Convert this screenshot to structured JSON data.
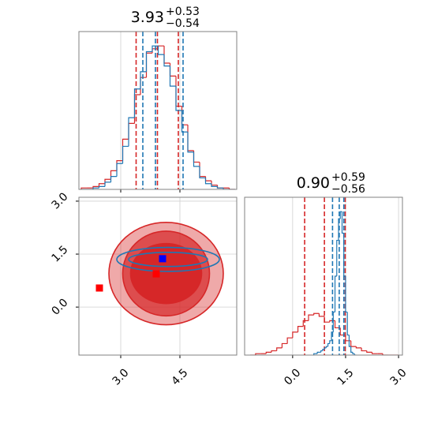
{
  "chart_data": [
    {
      "type": "histogram",
      "title": {
        "value": "3.93",
        "upper": "+0.53",
        "lower": "−0.54"
      },
      "xlim": [
        1.94,
        5.94
      ],
      "xticks": [
        3,
        4.5
      ],
      "ylim": [
        0,
        110
      ],
      "grid": true,
      "series": [
        {
          "color": "#d62728",
          "bins": [
            2.0,
            2.15,
            2.3,
            2.45,
            2.6,
            2.75,
            2.9,
            3.05,
            3.2,
            3.35,
            3.5,
            3.65,
            3.8,
            3.95,
            4.1,
            4.25,
            4.4,
            4.55,
            4.7,
            4.85,
            5.0,
            5.15,
            5.3,
            5.45,
            5.6,
            5.75,
            5.9
          ],
          "values": [
            1,
            1,
            2,
            4,
            7,
            13,
            20,
            35,
            46,
            66,
            78,
            95,
            98,
            100,
            88,
            79,
            58,
            45,
            27,
            19,
            9,
            6,
            3,
            1,
            1,
            0
          ],
          "quantiles": [
            3.39,
            3.93,
            4.46
          ]
        },
        {
          "color": "#1f77b4",
          "bins": [
            2.0,
            2.15,
            2.3,
            2.45,
            2.6,
            2.75,
            2.9,
            3.05,
            3.2,
            3.35,
            3.5,
            3.65,
            3.8,
            3.95,
            4.1,
            4.25,
            4.4,
            4.55,
            4.7,
            4.85,
            5.0,
            5.15,
            5.3,
            5.45,
            5.6,
            5.75,
            5.9
          ],
          "values": [
            0,
            0,
            1,
            2,
            5,
            9,
            18,
            30,
            50,
            70,
            82,
            96,
            100,
            94,
            86,
            72,
            55,
            40,
            26,
            16,
            8,
            4,
            2,
            1,
            0,
            0
          ],
          "quantiles": [
            3.56,
            3.88,
            4.58
          ]
        }
      ]
    },
    {
      "type": "contour",
      "xlim": [
        1.94,
        5.94
      ],
      "ylim": [
        -1.36,
        3.11
      ],
      "xticks": [
        {
          "value": 3,
          "label": "3.0"
        },
        {
          "value": 4.5,
          "label": "4.5"
        }
      ],
      "yticks": [
        {
          "value": 0,
          "label": "0.0"
        },
        {
          "value": 1.5,
          "label": "1.5"
        },
        {
          "value": 3,
          "label": "3.0"
        }
      ],
      "grid": true,
      "contours": [
        {
          "color": "#d62728",
          "center": [
            4.15,
            0.95
          ],
          "radii": [
            [
              1.45,
              1.45
            ],
            [
              1.1,
              1.2
            ],
            [
              0.9,
              0.85
            ]
          ]
        },
        {
          "color": "#1f77b4",
          "center": [
            4.2,
            1.35
          ],
          "radii": [
            [
              1.3,
              0.34
            ],
            [
              1.0,
              0.2
            ]
          ]
        }
      ],
      "points": [
        {
          "color": "#ff0000",
          "x": 2.46,
          "y": 0.54
        },
        {
          "color": "#ff0000",
          "x": 3.9,
          "y": 0.94
        },
        {
          "color": "#0000ff",
          "x": 4.06,
          "y": 1.37
        }
      ]
    },
    {
      "type": "histogram",
      "title": {
        "value": "0.90",
        "upper": "+0.59",
        "lower": "−0.56"
      },
      "xlim": [
        -1.36,
        3.11
      ],
      "xticks": [
        {
          "value": 0,
          "label": "0.0"
        },
        {
          "value": 1.5,
          "label": "1.5"
        },
        {
          "value": 3,
          "label": "3.0"
        }
      ],
      "ylim": [
        0,
        110
      ],
      "grid": true,
      "series": [
        {
          "color": "#d62728",
          "bins": [
            -1.2,
            -1.05,
            -0.9,
            -0.75,
            -0.6,
            -0.45,
            -0.3,
            -0.15,
            0.0,
            0.15,
            0.3,
            0.45,
            0.6,
            0.75,
            0.9,
            1.05,
            1.2,
            1.35,
            1.5,
            1.65,
            1.8,
            1.95,
            2.1,
            2.25,
            2.4,
            2.55,
            2.7,
            2.85,
            3.0
          ],
          "values": [
            0,
            1,
            1,
            2,
            3,
            5,
            8,
            12,
            16,
            20,
            24,
            28,
            29,
            27,
            23,
            24,
            19,
            14,
            10,
            6,
            5,
            3,
            2,
            1,
            1,
            0,
            0,
            0
          ],
          "quantiles": [
            0.34,
            0.9,
            1.49
          ]
        },
        {
          "color": "#1f77b4",
          "bins": [
            0.6,
            0.65,
            0.7,
            0.75,
            0.8,
            0.85,
            0.9,
            0.95,
            1.0,
            1.05,
            1.1,
            1.15,
            1.2,
            1.25,
            1.3,
            1.35,
            1.4,
            1.45,
            1.5,
            1.55,
            1.6,
            1.65,
            1.7,
            1.75,
            1.8
          ],
          "values": [
            1,
            1,
            2,
            2,
            3,
            4,
            5,
            6,
            8,
            10,
            16,
            30,
            55,
            80,
            95,
            100,
            85,
            55,
            30,
            14,
            6,
            2,
            1,
            0
          ],
          "quantiles": [
            1.13,
            1.32,
            1.45
          ]
        }
      ]
    }
  ]
}
